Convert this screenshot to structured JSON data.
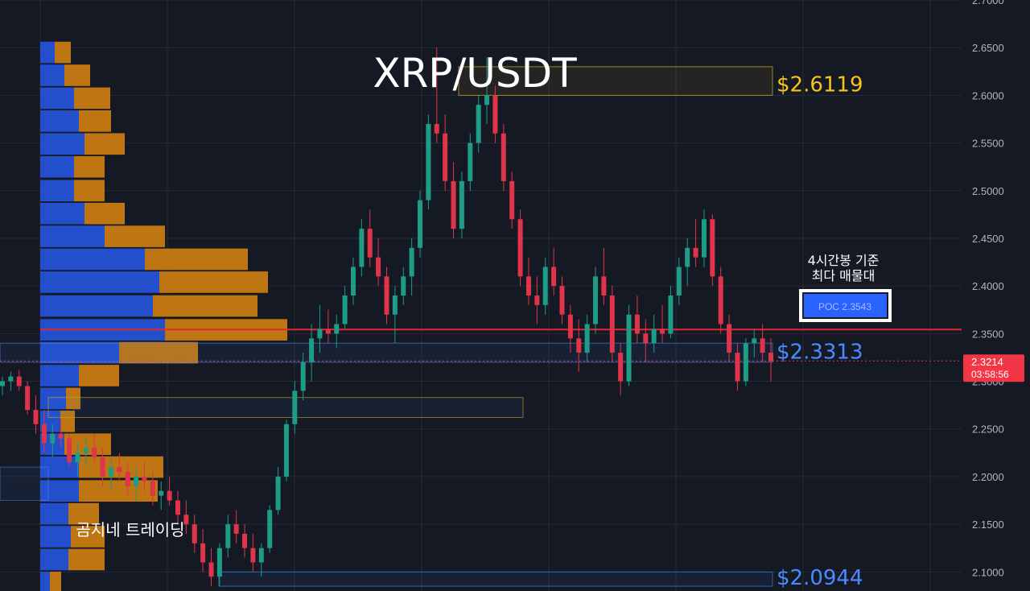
{
  "chart_data": {
    "type": "candlestick",
    "title": "XRP/USDT",
    "ylim": [
      2.08,
      2.7
    ],
    "y_ticks": [
      "2.1000",
      "2.1500",
      "2.2000",
      "2.2500",
      "2.3000",
      "2.3500",
      "2.4000",
      "2.4500",
      "2.5000",
      "2.5500",
      "2.6000",
      "2.6500",
      "2.7000"
    ],
    "last_price": {
      "value": "2.3214",
      "countdown": "03:58:56",
      "color": "#f23645"
    },
    "levels": [
      {
        "name": "resistance",
        "label": "$2.6119",
        "value": 2.6119,
        "low": 2.6,
        "high": 2.63,
        "color": "#f5c518"
      },
      {
        "name": "support-mid",
        "label": "$2.3313",
        "value": 2.3313,
        "low": 2.32,
        "high": 2.34,
        "color": "#4a8cff"
      },
      {
        "name": "support-low",
        "label": "$2.0944",
        "value": 2.0944,
        "low": 2.085,
        "high": 2.1,
        "color": "#4a8cff"
      }
    ],
    "poc": {
      "label": "POC  2.3543",
      "value": 2.3543,
      "note_line1": "4시간봉 기준",
      "note_line2": "최다 매물대"
    },
    "volume_profile": [
      {
        "price": 2.645,
        "buy": 18,
        "sell": 20
      },
      {
        "price": 2.621,
        "buy": 30,
        "sell": 32
      },
      {
        "price": 2.597,
        "buy": 42,
        "sell": 45
      },
      {
        "price": 2.573,
        "buy": 48,
        "sell": 40
      },
      {
        "price": 2.549,
        "buy": 55,
        "sell": 50
      },
      {
        "price": 2.525,
        "buy": 42,
        "sell": 38
      },
      {
        "price": 2.5,
        "buy": 42,
        "sell": 38
      },
      {
        "price": 2.476,
        "buy": 55,
        "sell": 50
      },
      {
        "price": 2.452,
        "buy": 80,
        "sell": 75
      },
      {
        "price": 2.428,
        "buy": 130,
        "sell": 128
      },
      {
        "price": 2.404,
        "buy": 148,
        "sell": 135
      },
      {
        "price": 2.379,
        "buy": 140,
        "sell": 130
      },
      {
        "price": 2.354,
        "buy": 155,
        "sell": 152
      },
      {
        "price": 2.33,
        "buy": 98,
        "sell": 98
      },
      {
        "price": 2.306,
        "buy": 48,
        "sell": 50
      },
      {
        "price": 2.282,
        "buy": 32,
        "sell": 18
      },
      {
        "price": 2.258,
        "buy": 25,
        "sell": 18
      },
      {
        "price": 2.234,
        "buy": 30,
        "sell": 58
      },
      {
        "price": 2.21,
        "buy": 48,
        "sell": 105
      },
      {
        "price": 2.185,
        "buy": 48,
        "sell": 98
      },
      {
        "price": 2.161,
        "buy": 35,
        "sell": 38
      },
      {
        "price": 2.137,
        "buy": 38,
        "sell": 42
      },
      {
        "price": 2.113,
        "buy": 35,
        "sell": 45
      },
      {
        "price": 2.089,
        "buy": 12,
        "sell": 14
      }
    ],
    "candles": [
      [
        2.295,
        2.305,
        2.285,
        2.3
      ],
      [
        2.3,
        2.31,
        2.29,
        2.305
      ],
      [
        2.305,
        2.312,
        2.29,
        2.295
      ],
      [
        2.295,
        2.3,
        2.265,
        2.27
      ],
      [
        2.27,
        2.285,
        2.245,
        2.255
      ],
      [
        2.255,
        2.27,
        2.225,
        2.235
      ],
      [
        2.235,
        2.255,
        2.22,
        2.245
      ],
      [
        2.245,
        2.26,
        2.23,
        2.24
      ],
      [
        2.24,
        2.245,
        2.21,
        2.215
      ],
      [
        2.215,
        2.235,
        2.2,
        2.225
      ],
      [
        2.225,
        2.24,
        2.21,
        2.23
      ],
      [
        2.23,
        2.245,
        2.215,
        2.22
      ],
      [
        2.22,
        2.23,
        2.19,
        2.2
      ],
      [
        2.2,
        2.22,
        2.185,
        2.21
      ],
      [
        2.21,
        2.225,
        2.195,
        2.205
      ],
      [
        2.205,
        2.215,
        2.18,
        2.19
      ],
      [
        2.19,
        2.21,
        2.175,
        2.2
      ],
      [
        2.2,
        2.215,
        2.185,
        2.195
      ],
      [
        2.195,
        2.205,
        2.17,
        2.18
      ],
      [
        2.18,
        2.195,
        2.165,
        2.185
      ],
      [
        2.185,
        2.2,
        2.17,
        2.175
      ],
      [
        2.175,
        2.185,
        2.15,
        2.16
      ],
      [
        2.16,
        2.175,
        2.14,
        2.15
      ],
      [
        2.15,
        2.16,
        2.12,
        2.13
      ],
      [
        2.13,
        2.145,
        2.1,
        2.11
      ],
      [
        2.11,
        2.125,
        2.085,
        2.095
      ],
      [
        2.095,
        2.13,
        2.085,
        2.125
      ],
      [
        2.125,
        2.16,
        2.115,
        2.15
      ],
      [
        2.15,
        2.165,
        2.13,
        2.14
      ],
      [
        2.14,
        2.15,
        2.115,
        2.125
      ],
      [
        2.125,
        2.14,
        2.1,
        2.11
      ],
      [
        2.11,
        2.13,
        2.095,
        2.125
      ],
      [
        2.125,
        2.17,
        2.12,
        2.165
      ],
      [
        2.165,
        2.21,
        2.16,
        2.2
      ],
      [
        2.2,
        2.26,
        2.195,
        2.255
      ],
      [
        2.255,
        2.3,
        2.245,
        2.29
      ],
      [
        2.29,
        2.33,
        2.28,
        2.32
      ],
      [
        2.32,
        2.36,
        2.3,
        2.345
      ],
      [
        2.345,
        2.38,
        2.33,
        2.355
      ],
      [
        2.355,
        2.375,
        2.34,
        2.35
      ],
      [
        2.35,
        2.37,
        2.335,
        2.36
      ],
      [
        2.36,
        2.4,
        2.355,
        2.39
      ],
      [
        2.39,
        2.43,
        2.38,
        2.42
      ],
      [
        2.42,
        2.47,
        2.41,
        2.46
      ],
      [
        2.46,
        2.48,
        2.42,
        2.43
      ],
      [
        2.43,
        2.45,
        2.4,
        2.41
      ],
      [
        2.41,
        2.42,
        2.36,
        2.37
      ],
      [
        2.37,
        2.4,
        2.34,
        2.39
      ],
      [
        2.39,
        2.42,
        2.38,
        2.41
      ],
      [
        2.41,
        2.45,
        2.39,
        2.44
      ],
      [
        2.44,
        2.5,
        2.43,
        2.49
      ],
      [
        2.49,
        2.58,
        2.48,
        2.57
      ],
      [
        2.57,
        2.65,
        2.55,
        2.56
      ],
      [
        2.56,
        2.58,
        2.5,
        2.51
      ],
      [
        2.51,
        2.53,
        2.45,
        2.46
      ],
      [
        2.46,
        2.52,
        2.45,
        2.51
      ],
      [
        2.51,
        2.56,
        2.5,
        2.55
      ],
      [
        2.55,
        2.6,
        2.54,
        2.59
      ],
      [
        2.59,
        2.64,
        2.57,
        2.6
      ],
      [
        2.6,
        2.61,
        2.55,
        2.56
      ],
      [
        2.56,
        2.57,
        2.5,
        2.51
      ],
      [
        2.51,
        2.52,
        2.46,
        2.47
      ],
      [
        2.47,
        2.48,
        2.4,
        2.41
      ],
      [
        2.41,
        2.43,
        2.38,
        2.39
      ],
      [
        2.39,
        2.41,
        2.36,
        2.38
      ],
      [
        2.38,
        2.43,
        2.37,
        2.42
      ],
      [
        2.42,
        2.44,
        2.39,
        2.4
      ],
      [
        2.4,
        2.41,
        2.36,
        2.37
      ],
      [
        2.37,
        2.38,
        2.33,
        2.345
      ],
      [
        2.345,
        2.365,
        2.31,
        2.33
      ],
      [
        2.33,
        2.37,
        2.32,
        2.36
      ],
      [
        2.36,
        2.42,
        2.35,
        2.41
      ],
      [
        2.41,
        2.44,
        2.38,
        2.39
      ],
      [
        2.39,
        2.4,
        2.32,
        2.33
      ],
      [
        2.33,
        2.34,
        2.285,
        2.3
      ],
      [
        2.3,
        2.38,
        2.295,
        2.37
      ],
      [
        2.37,
        2.39,
        2.34,
        2.35
      ],
      [
        2.35,
        2.365,
        2.32,
        2.34
      ],
      [
        2.34,
        2.37,
        2.33,
        2.355
      ],
      [
        2.355,
        2.38,
        2.34,
        2.35
      ],
      [
        2.35,
        2.4,
        2.345,
        2.39
      ],
      [
        2.39,
        2.43,
        2.38,
        2.42
      ],
      [
        2.42,
        2.45,
        2.4,
        2.44
      ],
      [
        2.44,
        2.47,
        2.42,
        2.43
      ],
      [
        2.43,
        2.48,
        2.42,
        2.47
      ],
      [
        2.47,
        2.475,
        2.4,
        2.41
      ],
      [
        2.41,
        2.42,
        2.35,
        2.36
      ],
      [
        2.36,
        2.37,
        2.32,
        2.33
      ],
      [
        2.33,
        2.34,
        2.29,
        2.3
      ],
      [
        2.3,
        2.345,
        2.295,
        2.34
      ],
      [
        2.34,
        2.355,
        2.325,
        2.345
      ],
      [
        2.345,
        2.36,
        2.32,
        2.33
      ],
      [
        2.33,
        2.345,
        2.3,
        2.321
      ]
    ]
  },
  "watermark": "곰지네 트레이딩"
}
